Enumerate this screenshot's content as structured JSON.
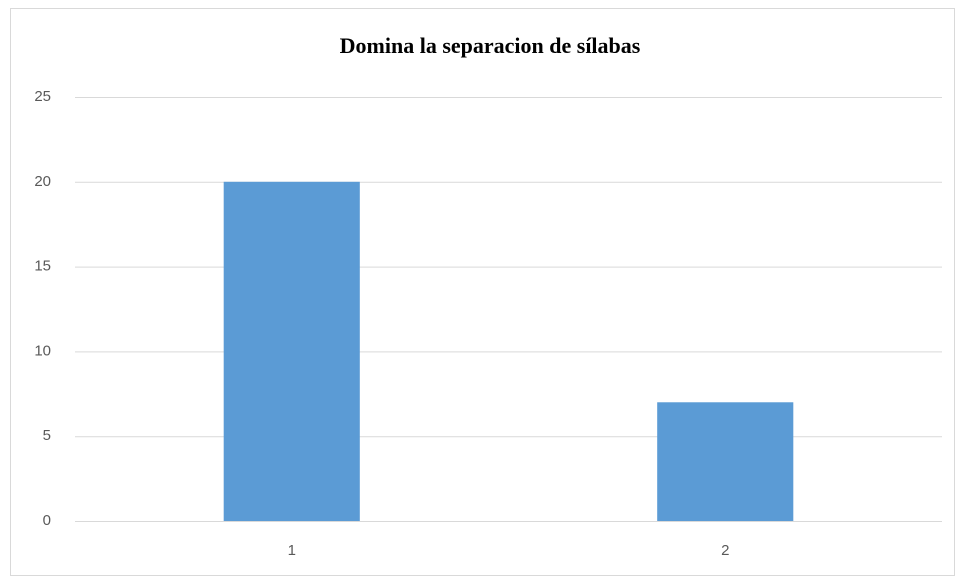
{
  "chart_data": {
    "type": "bar",
    "title": "Domina la separacion de sílabas",
    "categories": [
      "1",
      "2"
    ],
    "values": [
      20,
      7
    ],
    "color": "#5b9bd5",
    "ylim": [
      0,
      25
    ],
    "yticks": [
      0,
      5,
      10,
      15,
      20,
      25
    ],
    "grid": true
  }
}
